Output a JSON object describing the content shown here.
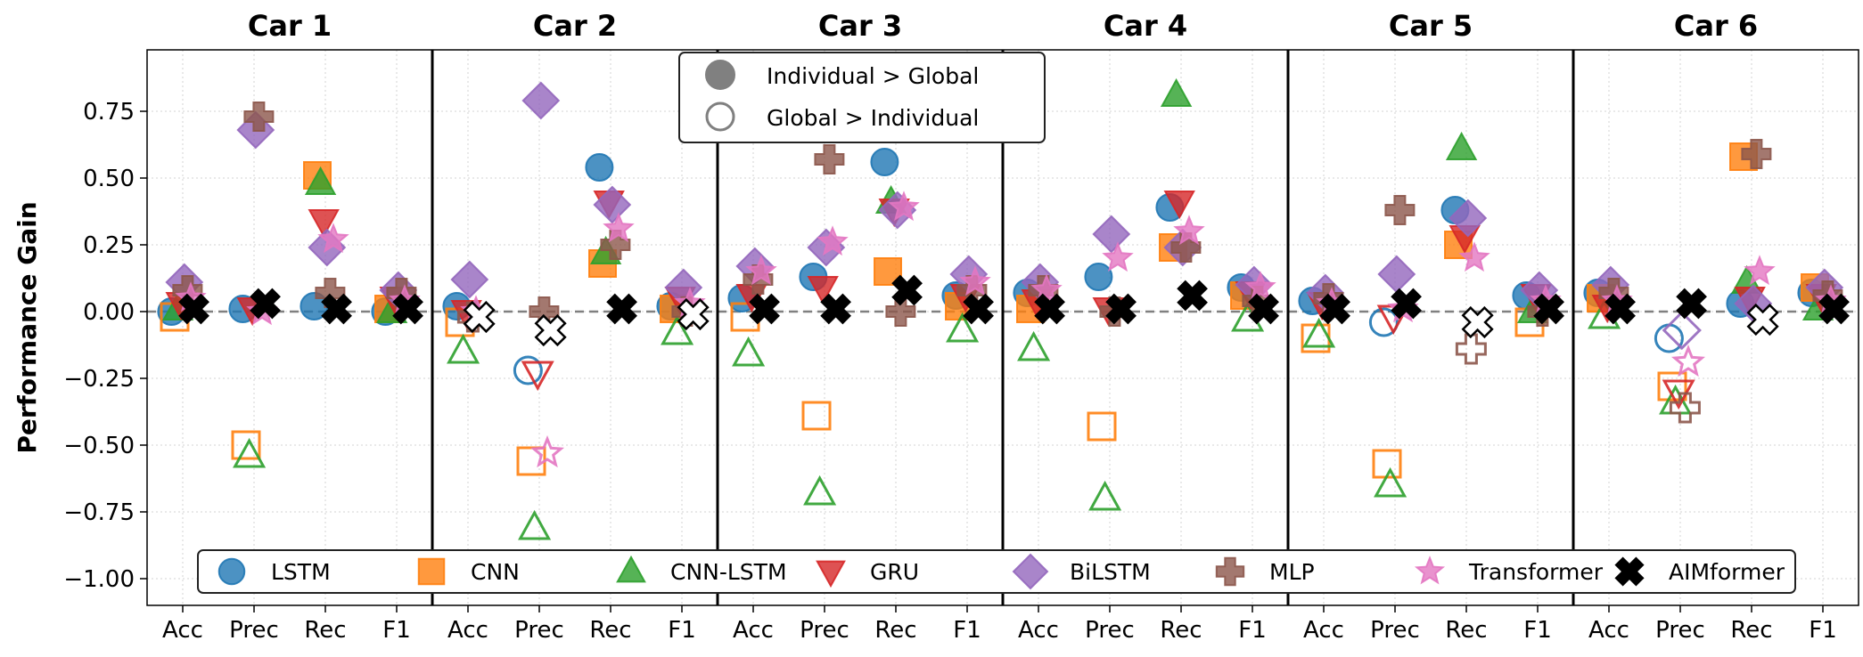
{
  "chart_data": {
    "type": "scatter",
    "ylabel": "Performance Gain",
    "ylim": [
      -1.1,
      0.98
    ],
    "yticks": [
      "0.75",
      "0.50",
      "0.25",
      "0.00",
      "−0.25",
      "−0.50",
      "−0.75",
      "−1.00"
    ],
    "ytick_values": [
      0.75,
      0.5,
      0.25,
      0.0,
      -0.25,
      -0.5,
      -0.75,
      -1.0
    ],
    "metrics": [
      "Acc",
      "Prec",
      "Rec",
      "F1"
    ],
    "cars": [
      "Car 1",
      "Car 2",
      "Car 3",
      "Car 4",
      "Car 5",
      "Car 6"
    ],
    "grid": true,
    "zero_line": true,
    "marker_legend": {
      "filled": "Individual > Global",
      "hollow": "Global > Individual",
      "placement": "upper-center"
    },
    "series_legend_placement": "bottom",
    "series": [
      {
        "name": "LSTM",
        "color": "#1f77b4",
        "marker": "circle",
        "values": [
          [
            0.0,
            0.01,
            0.02,
            0.0
          ],
          [
            0.02,
            -0.22,
            0.54,
            0.02
          ],
          [
            0.05,
            0.13,
            0.56,
            0.06
          ],
          [
            0.07,
            0.13,
            0.39,
            0.09
          ],
          [
            0.04,
            -0.04,
            0.38,
            0.06
          ],
          [
            0.07,
            -0.1,
            0.03,
            0.07
          ]
        ]
      },
      {
        "name": "CNN",
        "color": "#ff7f0e",
        "marker": "square",
        "values": [
          [
            -0.02,
            -0.5,
            0.51,
            0.01
          ],
          [
            -0.04,
            -0.56,
            0.18,
            0.01
          ],
          [
            -0.02,
            -0.39,
            0.15,
            0.02
          ],
          [
            0.01,
            -0.43,
            0.24,
            0.06
          ],
          [
            -0.1,
            -0.57,
            0.25,
            -0.04
          ],
          [
            0.05,
            -0.28,
            0.58,
            0.09
          ]
        ]
      },
      {
        "name": "CNN-LSTM",
        "color": "#2ca02c",
        "marker": "triangle-up",
        "values": [
          [
            0.01,
            -0.54,
            0.48,
            0.0
          ],
          [
            -0.15,
            -0.81,
            0.22,
            -0.08
          ],
          [
            -0.16,
            -0.68,
            0.41,
            -0.07
          ],
          [
            -0.14,
            -0.7,
            0.81,
            -0.03
          ],
          [
            -0.09,
            -0.65,
            0.61,
            0.0
          ],
          [
            -0.02,
            -0.34,
            0.11,
            0.01
          ]
        ]
      },
      {
        "name": "GRU",
        "color": "#d62728",
        "marker": "triangle-down",
        "values": [
          [
            0.03,
            0.01,
            0.34,
            0.05
          ],
          [
            0.0,
            -0.23,
            0.41,
            0.05
          ],
          [
            0.06,
            0.09,
            0.38,
            0.06
          ],
          [
            0.04,
            0.01,
            0.41,
            0.07
          ],
          [
            0.03,
            -0.02,
            0.28,
            0.06
          ],
          [
            0.02,
            -0.3,
            0.05,
            0.06
          ]
        ]
      },
      {
        "name": "BiLSTM",
        "color": "#9467bd",
        "marker": "diamond",
        "values": [
          [
            0.11,
            0.68,
            0.24,
            0.08
          ],
          [
            0.12,
            0.79,
            0.4,
            0.09
          ],
          [
            0.17,
            0.24,
            0.38,
            0.14
          ],
          [
            0.11,
            0.29,
            0.24,
            0.1
          ],
          [
            0.07,
            0.14,
            0.35,
            0.08
          ],
          [
            0.1,
            -0.07,
            0.03,
            0.09
          ]
        ]
      },
      {
        "name": "MLP",
        "color": "#8c564b",
        "marker": "plus",
        "values": [
          [
            0.08,
            0.73,
            0.07,
            0.07
          ],
          [
            -0.02,
            0.0,
            0.25,
            0.0
          ],
          [
            0.12,
            0.57,
            0.0,
            0.08
          ],
          [
            0.08,
            0.0,
            0.24,
            0.04
          ],
          [
            0.05,
            0.38,
            -0.14,
            0.0
          ],
          [
            0.07,
            -0.36,
            0.59,
            0.06
          ]
        ]
      },
      {
        "name": "Transformer",
        "color": "#e377c2",
        "marker": "star",
        "values": [
          [
            0.05,
            0.0,
            0.27,
            0.04
          ],
          [
            0.0,
            -0.53,
            0.31,
            0.03
          ],
          [
            0.15,
            0.26,
            0.39,
            0.11
          ],
          [
            0.08,
            0.2,
            0.3,
            0.09
          ],
          [
            0.03,
            0.01,
            0.2,
            0.04
          ],
          [
            0.04,
            -0.19,
            0.15,
            0.04
          ]
        ]
      },
      {
        "name": "AIMformer",
        "color": "#000000",
        "marker": "x",
        "values": [
          [
            0.01,
            0.03,
            0.01,
            0.01
          ],
          [
            -0.02,
            -0.07,
            0.01,
            -0.01
          ],
          [
            0.01,
            0.01,
            0.08,
            0.01
          ],
          [
            0.01,
            0.01,
            0.06,
            0.01
          ],
          [
            0.01,
            0.03,
            -0.04,
            0.01
          ],
          [
            0.01,
            0.03,
            -0.03,
            0.01
          ]
        ]
      }
    ]
  }
}
